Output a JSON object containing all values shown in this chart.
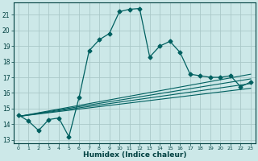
{
  "xlabel": "Humidex (Indice chaleur)",
  "xlim": [
    -0.5,
    23.5
  ],
  "ylim": [
    12.8,
    21.8
  ],
  "yticks": [
    13,
    14,
    15,
    16,
    17,
    18,
    19,
    20,
    21
  ],
  "xticks": [
    0,
    1,
    2,
    3,
    4,
    5,
    6,
    7,
    8,
    9,
    10,
    11,
    12,
    13,
    14,
    15,
    16,
    17,
    18,
    19,
    20,
    21,
    22,
    23
  ],
  "bg_color": "#cce8e8",
  "grid_color": "#aac8c8",
  "line_color": "#006060",
  "main_line": {
    "x": [
      0,
      1,
      2,
      3,
      4,
      5,
      6,
      7,
      8,
      9,
      10,
      11,
      12,
      13,
      14,
      15,
      16,
      17,
      18,
      19,
      20,
      21,
      22,
      23
    ],
    "y": [
      14.6,
      14.2,
      13.6,
      14.3,
      14.4,
      13.2,
      15.7,
      18.7,
      19.4,
      19.8,
      21.2,
      21.35,
      21.4,
      18.3,
      19.0,
      19.3,
      18.6,
      17.2,
      17.1,
      17.0,
      17.0,
      17.1,
      16.4,
      16.7
    ]
  },
  "straight_lines": [
    {
      "x0": 0,
      "y0": 14.5,
      "x1": 23,
      "y1": 16.3
    },
    {
      "x0": 0,
      "y0": 14.5,
      "x1": 23,
      "y1": 16.6
    },
    {
      "x0": 0,
      "y0": 14.5,
      "x1": 23,
      "y1": 16.9
    },
    {
      "x0": 0,
      "y0": 14.5,
      "x1": 23,
      "y1": 17.2
    }
  ]
}
